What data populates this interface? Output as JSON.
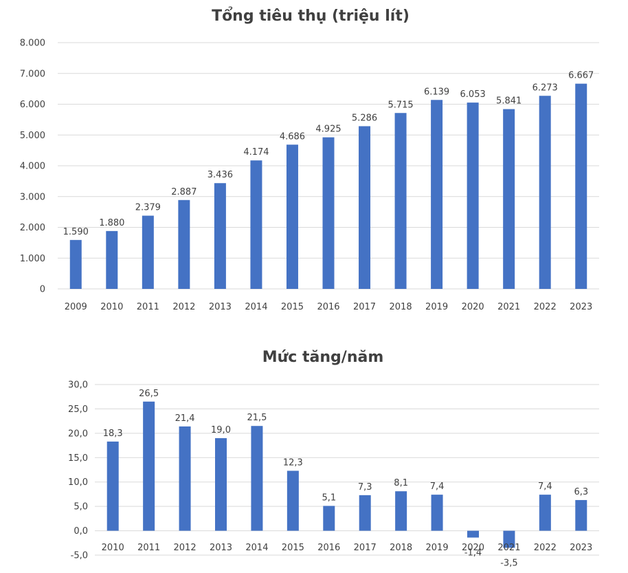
{
  "colors": {
    "bar": "#4472c4",
    "grid": "#d9d9d9",
    "text": "#404040"
  },
  "chart_data": [
    {
      "type": "bar",
      "title": "Tổng tiêu thụ (triệu lít)",
      "categories": [
        "2009",
        "2010",
        "2011",
        "2012",
        "2013",
        "2014",
        "2015",
        "2016",
        "2017",
        "2018",
        "2019",
        "2020",
        "2021",
        "2022",
        "2023"
      ],
      "values": [
        1590,
        1880,
        2379,
        2887,
        3436,
        4174,
        4686,
        4925,
        5286,
        5715,
        6139,
        6053,
        5841,
        6273,
        6667
      ],
      "value_labels": [
        "1.590",
        "1.880",
        "2.379",
        "2.887",
        "3.436",
        "4.174",
        "4.686",
        "4.925",
        "5.286",
        "5.715",
        "6.139",
        "6.053",
        "5.841",
        "6.273",
        "6.667"
      ],
      "yticks": [
        0,
        1000,
        2000,
        3000,
        4000,
        5000,
        6000,
        7000,
        8000
      ],
      "ytick_labels": [
        "0",
        "1.000",
        "2.000",
        "3.000",
        "4.000",
        "5.000",
        "6.000",
        "7.000",
        "8.000"
      ],
      "ylim": [
        0,
        8000
      ],
      "xlabel": "",
      "ylabel": "",
      "grid": true
    },
    {
      "type": "bar",
      "title": "Mức tăng/năm",
      "categories": [
        "2010",
        "2011",
        "2012",
        "2013",
        "2014",
        "2015",
        "2016",
        "2017",
        "2018",
        "2019",
        "2020",
        "2021",
        "2022",
        "2023"
      ],
      "values": [
        18.3,
        26.5,
        21.4,
        19.0,
        21.5,
        12.3,
        5.1,
        7.3,
        8.1,
        7.4,
        -1.4,
        -3.5,
        7.4,
        6.3
      ],
      "value_labels": [
        "18,3",
        "26,5",
        "21,4",
        "19,0",
        "21,5",
        "12,3",
        "5,1",
        "7,3",
        "8,1",
        "7,4",
        "-1,4",
        "-3,5",
        "7,4",
        "6,3"
      ],
      "yticks": [
        -5,
        0,
        5,
        10,
        15,
        20,
        25,
        30
      ],
      "ytick_labels": [
        "-5,0",
        "0,0",
        "5,0",
        "10,0",
        "15,0",
        "20,0",
        "25,0",
        "30,0"
      ],
      "ylim": [
        -5,
        30
      ],
      "xlabel": "",
      "ylabel": "",
      "grid": true
    }
  ]
}
